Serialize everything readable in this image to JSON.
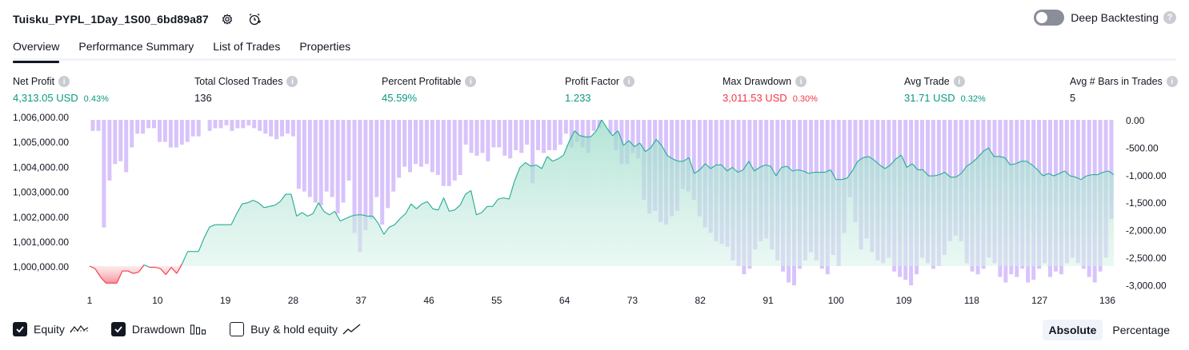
{
  "header": {
    "title": "Tuisku_PYPL_1Day_1S00_6bd89a87",
    "deep_backtesting_label": "Deep Backtesting"
  },
  "tabs": [
    {
      "label": "Overview",
      "active": true
    },
    {
      "label": "Performance Summary",
      "active": false
    },
    {
      "label": "List of Trades",
      "active": false
    },
    {
      "label": "Properties",
      "active": false
    }
  ],
  "metrics": {
    "net_profit": {
      "label": "Net Profit",
      "value": "4,313.05 USD",
      "pct": "0.43%"
    },
    "total_closed_trades": {
      "label": "Total Closed Trades",
      "value": "136"
    },
    "percent_profitable": {
      "label": "Percent Profitable",
      "value": "45.59%"
    },
    "profit_factor": {
      "label": "Profit Factor",
      "value": "1.233"
    },
    "max_drawdown": {
      "label": "Max Drawdown",
      "value": "3,011.53 USD",
      "pct": "0.30%"
    },
    "avg_trade": {
      "label": "Avg Trade",
      "value": "31.71 USD",
      "pct": "0.32%"
    },
    "avg_bars": {
      "label": "Avg # Bars in Trades",
      "value": "5"
    }
  },
  "colors": {
    "profit": "#089981",
    "loss": "#f23645",
    "drawdown_bar": "#d1b8fa",
    "equity_line": "#22ab94",
    "equity_fill": "#c8ebe2"
  },
  "chart_data": {
    "type": "line",
    "left_axis_ticks": [
      "1,006,000.00",
      "1,005,000.00",
      "1,004,000.00",
      "1,003,000.00",
      "1,002,000.00",
      "1,001,000.00",
      "1,000,000.00"
    ],
    "right_axis_ticks": [
      "0.00",
      "-500.00",
      "-1,000.00",
      "-1,500.00",
      "-2,000.00",
      "-2,500.00",
      "-3,000.00"
    ],
    "x_ticks": [
      "1",
      "10",
      "19",
      "28",
      "37",
      "46",
      "55",
      "64",
      "73",
      "82",
      "91",
      "100",
      "109",
      "118",
      "127",
      "136"
    ],
    "equity_ylim": [
      1000000,
      1006000
    ],
    "drawdown_ylim": [
      -3000,
      0
    ],
    "series": [
      {
        "name": "Equity",
        "values": [
          1000000,
          999900,
          999550,
          999300,
          999300,
          999300,
          999800,
          999800,
          999700,
          999750,
          1000050,
          999950,
          999950,
          999900,
          999650,
          999950,
          999700,
          1000100,
          1000600,
          1000600,
          1000600,
          1001150,
          1001600,
          1001700,
          1001700,
          1001700,
          1001700,
          1002150,
          1002550,
          1002600,
          1002700,
          1002600,
          1002400,
          1002450,
          1002500,
          1002650,
          1002950,
          1002950,
          1002050,
          1002200,
          1002050,
          1002150,
          1002600,
          1002250,
          1002100,
          1002250,
          1001850,
          1001950,
          1002050,
          1002100,
          1002100,
          1002050,
          1002050,
          1001750,
          1001300,
          1001600,
          1001700,
          1001950,
          1002150,
          1002550,
          1002350,
          1002550,
          1002650,
          1002350,
          1002300,
          1002800,
          1002250,
          1002300,
          1002500,
          1002950,
          1003100,
          1002100,
          1002200,
          1002450,
          1002450,
          1002750,
          1002800,
          1002750,
          1003500,
          1004050,
          1004250,
          1004100,
          1004150,
          1004000,
          1004500,
          1004300,
          1004400,
          1004550,
          1005100,
          1005550,
          1005350,
          1005300,
          1005300,
          1005550,
          1006000,
          1005650,
          1005350,
          1005550,
          1004950,
          1005150,
          1004900,
          1005050,
          1004700,
          1004850,
          1005200,
          1004950,
          1004550,
          1004400,
          1004300,
          1004300,
          1004450,
          1003800,
          1003950,
          1004200,
          1004000,
          1004150,
          1004150,
          1003900,
          1004050,
          1003850,
          1003950,
          1004300,
          1003900,
          1004050,
          1004150,
          1004100,
          1003700,
          1004050,
          1004100,
          1003900,
          1003950,
          1003900,
          1003800,
          1003850,
          1003850,
          1003850,
          1003950,
          1003550,
          1003550,
          1003600,
          1003900,
          1004300,
          1004450,
          1004500,
          1004350,
          1004150,
          1004000,
          1004150,
          1004400,
          1004550,
          1004050,
          1004200,
          1003950,
          1003950,
          1003700,
          1003700,
          1003750,
          1003850,
          1003650,
          1003650,
          1003800,
          1004100,
          1004250,
          1004450,
          1004700,
          1004850,
          1004500,
          1004500,
          1004450,
          1004150,
          1004200,
          1004300,
          1004300,
          1004150,
          1003950,
          1003700,
          1003800,
          1003700,
          1003800,
          1003900,
          1003700,
          1003650,
          1003550,
          1003700,
          1003750,
          1003750,
          1003850,
          1003900,
          1003750
        ]
      },
      {
        "name": "Drawdown",
        "values": [
          -200,
          -200,
          -1950,
          -1100,
          -800,
          -750,
          -950,
          -500,
          -250,
          -250,
          -150,
          -150,
          -400,
          -400,
          -500,
          -500,
          -450,
          -400,
          -300,
          -300,
          0,
          -200,
          -150,
          -150,
          -100,
          -200,
          -150,
          -150,
          -100,
          -150,
          -200,
          -250,
          -300,
          -350,
          -300,
          -250,
          -300,
          -1250,
          -1300,
          -1400,
          -1500,
          -1550,
          -1300,
          -1400,
          -1700,
          -1500,
          -1100,
          -2050,
          -2400,
          -2000,
          -1800,
          -1400,
          -1900,
          -1600,
          -1300,
          -1050,
          -850,
          -950,
          -800,
          -850,
          -800,
          -950,
          -1000,
          -1200,
          -1200,
          -1100,
          -1000,
          -450,
          -600,
          -650,
          -600,
          -750,
          -500,
          -500,
          -650,
          -700,
          -550,
          -600,
          -450,
          -1150,
          -550,
          -600,
          -550,
          -550,
          -450,
          -250,
          -500,
          -400,
          -500,
          -600,
          -200,
          -150,
          0,
          -250,
          -550,
          -800,
          -800,
          -600,
          -700,
          -1450,
          -1700,
          -1650,
          -1850,
          -1900,
          -1750,
          -1650,
          -1250,
          -1300,
          -1450,
          -1750,
          -1950,
          -2050,
          -2200,
          -2250,
          -2300,
          -2550,
          -2650,
          -2800,
          -2700,
          -2350,
          -2200,
          -2150,
          -2350,
          -2550,
          -2750,
          -2950,
          -3000,
          -2700,
          -2550,
          -2400,
          -2550,
          -2700,
          -2800,
          -2450,
          -2650,
          -2050,
          -1400,
          -1850,
          -2350,
          -2150,
          -2400,
          -2550,
          -2600,
          -2500,
          -2750,
          -2850,
          -2900,
          -3000,
          -2800,
          -2500,
          -2600,
          -2700,
          -2650,
          -2450,
          -2200,
          -2100,
          -2200,
          -2600,
          -2750,
          -2800,
          -2700,
          -2500,
          -2600,
          -2850,
          -2950,
          -2800,
          -2850,
          -2700,
          -2950,
          -2900,
          -2700,
          -2600,
          -2850,
          -2750,
          -2800,
          -2600,
          -2500,
          -2600,
          -2700,
          -2850,
          -2950,
          -2750,
          -2500,
          -1800
        ]
      }
    ]
  },
  "legend": {
    "equity": {
      "label": "Equity",
      "checked": true
    },
    "drawdown": {
      "label": "Drawdown",
      "checked": true
    },
    "buy_hold": {
      "label": "Buy & hold equity",
      "checked": false
    }
  },
  "mode": {
    "absolute": "Absolute",
    "percentage": "Percentage"
  }
}
